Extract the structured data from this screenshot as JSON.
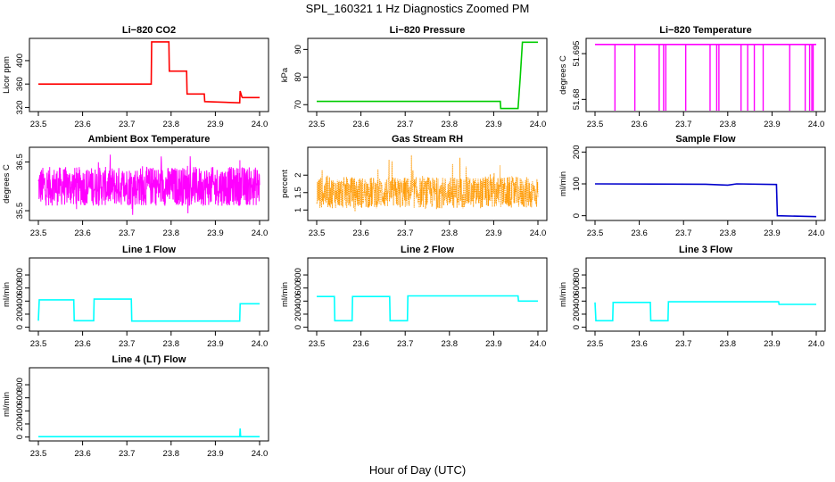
{
  "figure": {
    "title": "SPL_160321  1 Hz Diagnostics Zoomed PM",
    "xlabel": "Hour of Day (UTC)"
  },
  "chart_data": [
    {
      "type": "line",
      "title": "Li−820 CO2",
      "ylabel": "Licor ppm",
      "color": "#ff0000",
      "xlim": [
        23.5,
        24.0
      ],
      "ylim": [
        313,
        438
      ],
      "x_ticks": [
        "23.5",
        "23.6",
        "23.7",
        "23.8",
        "23.9",
        "24.0"
      ],
      "y_ticks": [
        320,
        360,
        400
      ],
      "x": [
        23.5,
        23.755,
        23.756,
        23.795,
        23.796,
        23.835,
        23.836,
        23.875,
        23.876,
        23.955,
        23.956,
        23.96,
        23.961,
        24.0
      ],
      "y": [
        360,
        360,
        432,
        432,
        382,
        382,
        343,
        343,
        330,
        328,
        348,
        338,
        337,
        337
      ]
    },
    {
      "type": "line",
      "title": "Li−820 Pressure",
      "ylabel": "kPa",
      "color": "#00cc00",
      "xlim": [
        23.5,
        24.0
      ],
      "ylim": [
        67.5,
        94
      ],
      "x_ticks": [
        "23.5",
        "23.6",
        "23.7",
        "23.8",
        "23.9",
        "24.0"
      ],
      "y_ticks": [
        70,
        80,
        90
      ],
      "x": [
        23.5,
        23.915,
        23.916,
        23.955,
        23.96,
        23.965,
        23.966,
        24.0
      ],
      "y": [
        71.2,
        71.2,
        68.6,
        68.6,
        80,
        92.6,
        92.6,
        92.6
      ]
    },
    {
      "type": "line",
      "title": "Li−820 Temperature",
      "ylabel": "degrees C",
      "color": "#ff00ff",
      "xlim": [
        23.5,
        24.0
      ],
      "ylim": [
        51.676,
        51.7
      ],
      "x_ticks": [
        "23.5",
        "23.6",
        "23.7",
        "23.8",
        "23.9",
        "24.0"
      ],
      "y_ticks": [
        51.68,
        51.695
      ],
      "baseline": 51.698,
      "dips": [
        23.545,
        23.59,
        23.645,
        23.655,
        23.66,
        23.705,
        23.76,
        23.775,
        23.78,
        23.83,
        23.845,
        23.86,
        23.88,
        23.94,
        23.975,
        23.985,
        23.99,
        23.993
      ]
    },
    {
      "type": "line",
      "title": "Ambient Box Temperature",
      "ylabel": "degrees C",
      "color": "#ff00ff",
      "xlim": [
        23.5,
        24.0
      ],
      "ylim": [
        35.3,
        36.8
      ],
      "x_ticks": [
        "23.5",
        "23.6",
        "23.7",
        "23.8",
        "23.9",
        "24.0"
      ],
      "y_ticks": [
        35.5,
        36.5
      ],
      "center": 36.0,
      "band": [
        35.6,
        36.4
      ],
      "extremes": [
        35.4,
        36.7
      ]
    },
    {
      "type": "scatter",
      "title": "Gas Stream RH",
      "ylabel": "percent",
      "color": "#ff9900",
      "xlim": [
        23.5,
        24.0
      ],
      "ylim": [
        0.7,
        2.8
      ],
      "x_ticks": [
        "23.5",
        "23.6",
        "23.7",
        "23.8",
        "23.9",
        "24.0"
      ],
      "y_ticks": [
        1.0,
        1.5,
        2.0
      ],
      "center": 1.5,
      "band": [
        1.05,
        1.95
      ],
      "extremes": [
        0.85,
        2.65
      ]
    },
    {
      "type": "line",
      "title": "Sample Flow",
      "ylabel": "ml/min",
      "color": "#0000cc",
      "xlim": [
        23.5,
        24.0
      ],
      "ylim": [
        -15,
        215
      ],
      "x_ticks": [
        "23.5",
        "23.6",
        "23.7",
        "23.8",
        "23.9",
        "24.0"
      ],
      "y_ticks": [
        0,
        100,
        200
      ],
      "x": [
        23.5,
        23.75,
        23.8,
        23.82,
        23.91,
        23.912,
        24.0
      ],
      "y": [
        100,
        99,
        96,
        100,
        98,
        0,
        -3
      ]
    },
    {
      "type": "line",
      "title": "Line 1 Flow",
      "ylabel": "ml/min",
      "color": "#00ffff",
      "xlim": [
        23.5,
        24.0
      ],
      "ylim": [
        -60,
        1060
      ],
      "x_ticks": [
        "23.5",
        "23.6",
        "23.7",
        "23.8",
        "23.9",
        "24.0"
      ],
      "y_ticks": [
        0,
        200,
        400,
        600,
        800
      ],
      "x": [
        23.5,
        23.502,
        23.58,
        23.581,
        23.625,
        23.626,
        23.71,
        23.711,
        23.955,
        23.956,
        24.0
      ],
      "y": [
        100,
        420,
        420,
        100,
        100,
        430,
        430,
        95,
        95,
        360,
        360
      ]
    },
    {
      "type": "line",
      "title": "Line 2 Flow",
      "ylabel": "ml/min",
      "color": "#00ffff",
      "xlim": [
        23.5,
        24.0
      ],
      "ylim": [
        -60,
        1060
      ],
      "x_ticks": [
        "23.5",
        "23.6",
        "23.7",
        "23.8",
        "23.9",
        "24.0"
      ],
      "y_ticks": [
        0,
        200,
        400,
        600,
        800
      ],
      "x": [
        23.5,
        23.54,
        23.541,
        23.58,
        23.581,
        23.665,
        23.666,
        23.705,
        23.706,
        23.955,
        23.956,
        24.0
      ],
      "y": [
        470,
        470,
        100,
        100,
        470,
        470,
        100,
        100,
        480,
        480,
        400,
        400
      ]
    },
    {
      "type": "line",
      "title": "Line 3 Flow",
      "ylabel": "ml/min",
      "color": "#00ffff",
      "xlim": [
        23.5,
        24.0
      ],
      "ylim": [
        -60,
        1060
      ],
      "x_ticks": [
        "23.5",
        "23.6",
        "23.7",
        "23.8",
        "23.9",
        "24.0"
      ],
      "y_ticks": [
        0,
        200,
        400,
        600,
        800
      ],
      "x": [
        23.5,
        23.502,
        23.54,
        23.541,
        23.625,
        23.626,
        23.665,
        23.666,
        23.915,
        23.916,
        24.0
      ],
      "y": [
        380,
        100,
        100,
        380,
        380,
        100,
        100,
        390,
        390,
        350,
        350
      ]
    },
    {
      "type": "line",
      "title": "Line 4 (LT) Flow",
      "ylabel": "ml/min",
      "color": "#00ffff",
      "xlim": [
        23.5,
        24.0
      ],
      "ylim": [
        -60,
        1060
      ],
      "x_ticks": [
        "23.5",
        "23.6",
        "23.7",
        "23.8",
        "23.9",
        "24.0"
      ],
      "y_ticks": [
        0,
        200,
        400,
        600,
        800
      ],
      "x": [
        23.5,
        23.955,
        23.956,
        23.957,
        24.0
      ],
      "y": [
        5,
        5,
        130,
        5,
        5
      ]
    }
  ]
}
